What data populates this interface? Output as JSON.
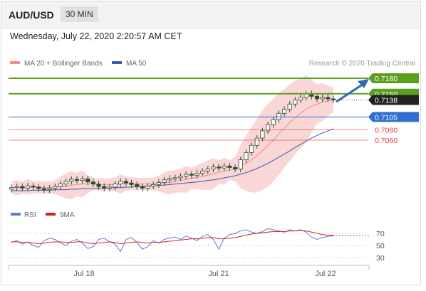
{
  "header": {
    "symbol": "AUD/USD",
    "timeframe": "30 MIN"
  },
  "date_line": "Wednesday, July 22, 2020 2:20:57 AM CET",
  "legend": {
    "ma20": "MA 20 + Bollinger Bands",
    "ma50": "MA 50",
    "credit": "Research © 2020 Trading Central"
  },
  "colors": {
    "up_green": "#5aa01e",
    "pivot_blue": "#2e6fd0",
    "support_red": "#e33a3a",
    "candle": "#2d4a2d",
    "bollinger": "#f7c6c6",
    "ma50": "#3b5ba8",
    "rsi": "#5b7ed6",
    "rsi_ma": "#e02020"
  },
  "chart_data": [
    {
      "type": "candlestick",
      "x_ticks": [
        "Jul 18",
        "Jul 21",
        "Jul 22"
      ],
      "levels": [
        {
          "label": "0.7180",
          "kind": "resistance"
        },
        {
          "label": "0.7150",
          "kind": "resistance"
        },
        {
          "label": "0.7138",
          "kind": "current"
        },
        {
          "label": "0.7105",
          "kind": "pivot"
        },
        {
          "label": "0.7080",
          "kind": "support"
        },
        {
          "label": "0.7060",
          "kind": "support"
        }
      ],
      "close_series": [
        0.6968,
        0.697,
        0.6967,
        0.6971,
        0.6969,
        0.6966,
        0.6964,
        0.6967,
        0.697,
        0.6975,
        0.698,
        0.6984,
        0.6982,
        0.6985,
        0.6979,
        0.6975,
        0.697,
        0.6967,
        0.6969,
        0.6975,
        0.698,
        0.6977,
        0.6974,
        0.697,
        0.6967,
        0.6971,
        0.6974,
        0.6978,
        0.6983,
        0.6986,
        0.6987,
        0.699,
        0.6994,
        0.6992,
        0.6996,
        0.7,
        0.7004,
        0.7008,
        0.7006,
        0.701,
        0.7007,
        0.7004,
        0.7022,
        0.7036,
        0.705,
        0.7064,
        0.7078,
        0.709,
        0.71,
        0.7112,
        0.712,
        0.713,
        0.7138,
        0.7143,
        0.715,
        0.7145,
        0.714,
        0.7143,
        0.714,
        0.7138
      ],
      "ma20": [
        0.6968,
        0.6968,
        0.6968,
        0.6969,
        0.6969,
        0.6969,
        0.6968,
        0.6968,
        0.6969,
        0.697,
        0.6971,
        0.6973,
        0.6974,
        0.6975,
        0.6975,
        0.6975,
        0.6974,
        0.6974,
        0.6974,
        0.6974,
        0.6975,
        0.6976,
        0.6976,
        0.6975,
        0.6975,
        0.6975,
        0.6975,
        0.6976,
        0.6977,
        0.6978,
        0.698,
        0.6982,
        0.6984,
        0.6986,
        0.6988,
        0.699,
        0.6992,
        0.6995,
        0.6998,
        0.7,
        0.7002,
        0.7004,
        0.7009,
        0.7015,
        0.7022,
        0.703,
        0.704,
        0.705,
        0.706,
        0.7072,
        0.7083,
        0.7094,
        0.7104,
        0.7112,
        0.712,
        0.7126,
        0.713,
        0.7134,
        0.7136,
        0.7138
      ],
      "ma50": [
        0.6962,
        0.6962,
        0.6962,
        0.6962,
        0.6963,
        0.6963,
        0.6963,
        0.6963,
        0.6964,
        0.6964,
        0.6964,
        0.6965,
        0.6965,
        0.6966,
        0.6966,
        0.6966,
        0.6967,
        0.6967,
        0.6967,
        0.6968,
        0.6968,
        0.6969,
        0.6969,
        0.697,
        0.697,
        0.6971,
        0.6972,
        0.6972,
        0.6973,
        0.6974,
        0.6975,
        0.6976,
        0.6977,
        0.6978,
        0.6979,
        0.698,
        0.6982,
        0.6983,
        0.6985,
        0.6987,
        0.6989,
        0.6991,
        0.6994,
        0.6997,
        0.7001,
        0.7005,
        0.701,
        0.7015,
        0.7021,
        0.7027,
        0.7033,
        0.7039,
        0.7046,
        0.7052,
        0.7058,
        0.7064,
        0.7069,
        0.7074,
        0.7078,
        0.7082
      ]
    },
    {
      "type": "line",
      "series": [
        {
          "name": "RSI"
        },
        {
          "name": "9MA"
        }
      ],
      "y_ticks": [
        70,
        50,
        30
      ],
      "rsi": [
        55,
        58,
        52,
        56,
        50,
        47,
        58,
        62,
        60,
        54,
        50,
        57,
        60,
        54,
        45,
        48,
        60,
        62,
        56,
        52,
        40,
        60,
        63,
        55,
        44,
        48,
        58,
        54,
        60,
        62,
        64,
        60,
        66,
        62,
        58,
        65,
        68,
        60,
        44,
        62,
        68,
        70,
        74,
        76,
        72,
        70,
        73,
        78,
        76,
        74,
        72,
        76,
        74,
        76,
        72,
        64,
        60,
        63,
        65,
        66
      ],
      "rsi_ma": [
        56,
        56,
        55,
        55,
        54,
        53,
        54,
        55,
        56,
        56,
        55,
        55,
        56,
        56,
        54,
        53,
        54,
        55,
        56,
        55,
        53,
        54,
        55,
        56,
        55,
        54,
        55,
        55,
        56,
        57,
        58,
        59,
        60,
        61,
        61,
        62,
        63,
        63,
        61,
        61,
        62,
        63,
        65,
        67,
        69,
        70,
        71,
        72,
        73,
        73,
        73,
        74,
        74,
        75,
        74,
        72,
        70,
        68,
        67,
        67
      ]
    }
  ]
}
